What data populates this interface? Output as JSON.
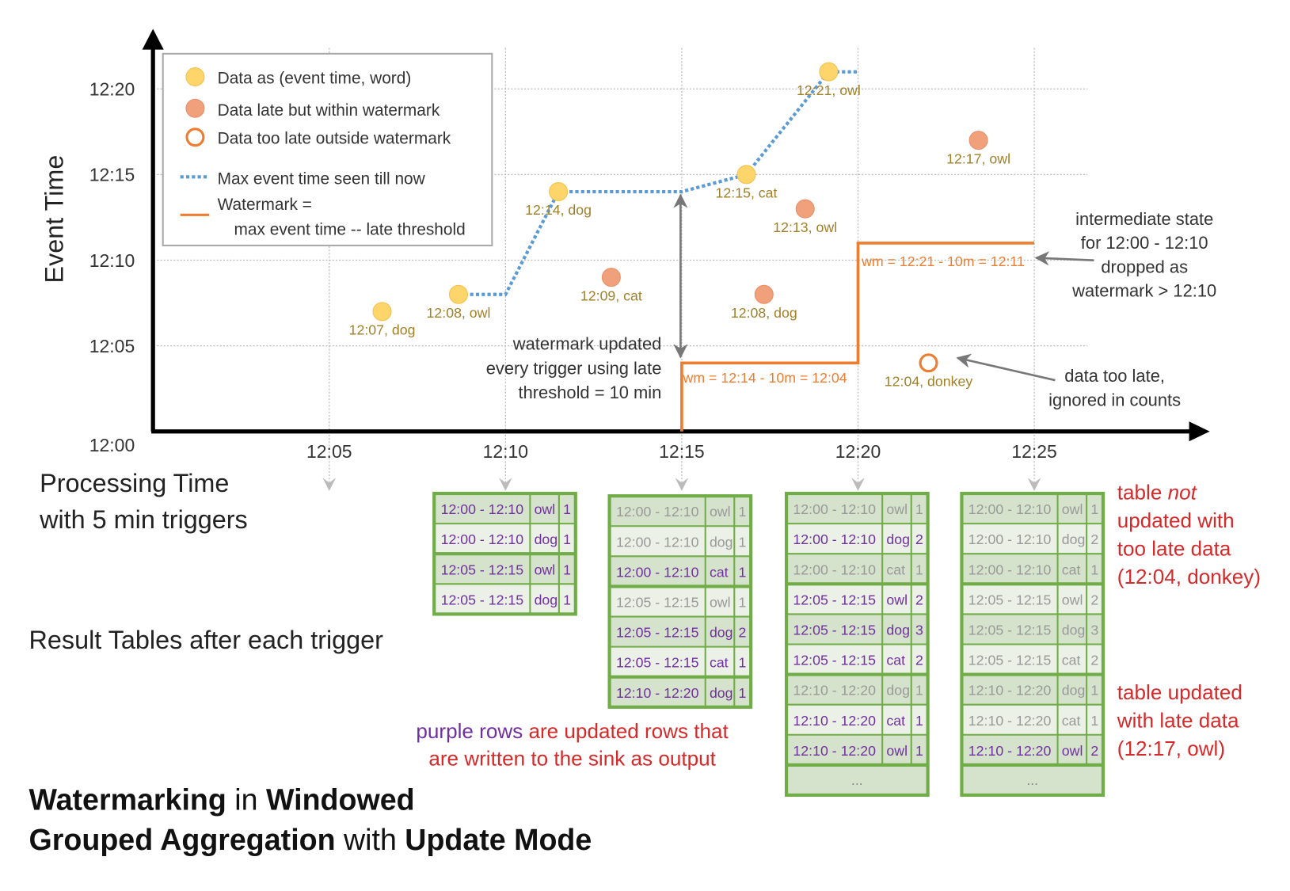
{
  "chart": {
    "y_axis_label": "Event Time",
    "x_axis_label_lines": [
      "Processing Time",
      "with 5 min triggers"
    ],
    "y_ticks": [
      "12:00",
      "12:05",
      "12:10",
      "12:15",
      "12:20"
    ],
    "x_ticks": [
      "12:05",
      "12:10",
      "12:15",
      "12:20",
      "12:25"
    ],
    "legend": {
      "on_time": "Data as (event time, word)",
      "late": "Data late but within watermark",
      "too_late": "Data too late outside watermark",
      "max_event": "Max event time seen till now",
      "watermark_line1": "Watermark =",
      "watermark_line2": "max event time -- late threshold"
    },
    "points": [
      {
        "processing": "12:06:30",
        "event": "12:07",
        "word": "dog",
        "kind": "on_time",
        "label": "12:07, dog"
      },
      {
        "processing": "12:08:40",
        "event": "12:08",
        "word": "owl",
        "kind": "on_time",
        "label": "12:08, owl"
      },
      {
        "processing": "12:11:30",
        "event": "12:14",
        "word": "dog",
        "kind": "on_time",
        "label": "12:14, dog"
      },
      {
        "processing": "12:13:00",
        "event": "12:09",
        "word": "cat",
        "kind": "late",
        "label": "12:09, cat"
      },
      {
        "processing": "12:16:50",
        "event": "12:15",
        "word": "cat",
        "kind": "on_time",
        "label": "12:15, cat"
      },
      {
        "processing": "12:17:20",
        "event": "12:08",
        "word": "dog",
        "kind": "late",
        "label": "12:08, dog"
      },
      {
        "processing": "12:18:30",
        "event": "12:13",
        "word": "owl",
        "kind": "late",
        "label": "12:13, owl"
      },
      {
        "processing": "12:19:10",
        "event": "12:21",
        "word": "owl",
        "kind": "on_time",
        "label": "12:21, owl"
      },
      {
        "processing": "12:22:00",
        "event": "12:04",
        "word": "donkey",
        "kind": "too_late",
        "label": "12:04, donkey"
      },
      {
        "processing": "12:23:25",
        "event": "12:17",
        "word": "owl",
        "kind": "late",
        "label": "12:17, owl"
      }
    ],
    "max_event_line": [
      [
        "12:08:40",
        "12:08"
      ],
      [
        "12:10:00",
        "12:08"
      ],
      [
        "12:11:30",
        "12:14"
      ],
      [
        "12:15:00",
        "12:14"
      ],
      [
        "12:16:50",
        "12:15"
      ],
      [
        "12:19:10",
        "12:21"
      ],
      [
        "12:20:00",
        "12:21"
      ]
    ],
    "watermark_line": [
      [
        "12:15:00",
        "12:00"
      ],
      [
        "12:15:00",
        "12:04"
      ],
      [
        "12:20:00",
        "12:04"
      ],
      [
        "12:20:00",
        "12:11"
      ],
      [
        "12:25:00",
        "12:11"
      ]
    ],
    "colors": {
      "on_time": "#fdd56b",
      "late": "#f0a07a",
      "too_late": "#ed7d31",
      "max_event": "#5b9bd5",
      "watermark": "#ed7d31",
      "updated_row": "#7030a0",
      "stale_row": "#999999",
      "table_border": "#70ad47",
      "note": "#d42a2a"
    }
  },
  "annotations": {
    "watermark_updated": [
      "watermark updated",
      "every trigger using late",
      "threshold = 10 min"
    ],
    "wm1": "wm = 12:14 - 10m = 12:04",
    "wm2": "wm = 12:21 - 10m = 12:11",
    "state_dropped": [
      "intermediate state",
      "for 12:00 - 12:10",
      "dropped as",
      "watermark > 12:10"
    ],
    "too_late": [
      "data too late,",
      "ignored in counts"
    ]
  },
  "result_tables_label": "Result Tables after each trigger",
  "tables": [
    {
      "trigger": "12:10",
      "more": "",
      "rows": [
        {
          "window": "12:00 - 12:10",
          "word": "owl",
          "count": "1",
          "updated": true
        },
        {
          "window": "12:00 - 12:10",
          "word": "dog",
          "count": "1",
          "updated": true
        },
        {
          "window": "12:05 - 12:15",
          "word": "owl",
          "count": "1",
          "updated": true
        },
        {
          "window": "12:05 - 12:15",
          "word": "dog",
          "count": "1",
          "updated": true
        }
      ]
    },
    {
      "trigger": "12:15",
      "more": "",
      "rows": [
        {
          "window": "12:00 - 12:10",
          "word": "owl",
          "count": "1",
          "updated": false
        },
        {
          "window": "12:00 - 12:10",
          "word": "dog",
          "count": "1",
          "updated": false
        },
        {
          "window": "12:00 - 12:10",
          "word": "cat",
          "count": "1",
          "updated": true
        },
        {
          "window": "12:05 - 12:15",
          "word": "owl",
          "count": "1",
          "updated": false
        },
        {
          "window": "12:05 - 12:15",
          "word": "dog",
          "count": "2",
          "updated": true
        },
        {
          "window": "12:05 - 12:15",
          "word": "cat",
          "count": "1",
          "updated": true
        },
        {
          "window": "12:10 - 12:20",
          "word": "dog",
          "count": "1",
          "updated": true
        }
      ]
    },
    {
      "trigger": "12:20",
      "more": "...",
      "rows": [
        {
          "window": "12:00 - 12:10",
          "word": "owl",
          "count": "1",
          "updated": false
        },
        {
          "window": "12:00 - 12:10",
          "word": "dog",
          "count": "2",
          "updated": true
        },
        {
          "window": "12:00 - 12:10",
          "word": "cat",
          "count": "1",
          "updated": false
        },
        {
          "window": "12:05 - 12:15",
          "word": "owl",
          "count": "2",
          "updated": true
        },
        {
          "window": "12:05 - 12:15",
          "word": "dog",
          "count": "3",
          "updated": true
        },
        {
          "window": "12:05 - 12:15",
          "word": "cat",
          "count": "2",
          "updated": true
        },
        {
          "window": "12:10 - 12:20",
          "word": "dog",
          "count": "1",
          "updated": false
        },
        {
          "window": "12:10 - 12:20",
          "word": "cat",
          "count": "1",
          "updated": true
        },
        {
          "window": "12:10 - 12:20",
          "word": "owl",
          "count": "1",
          "updated": true
        }
      ]
    },
    {
      "trigger": "12:25",
      "more": "...",
      "rows": [
        {
          "window": "12:00 - 12:10",
          "word": "owl",
          "count": "1",
          "updated": false
        },
        {
          "window": "12:00 - 12:10",
          "word": "dog",
          "count": "2",
          "updated": false
        },
        {
          "window": "12:00 - 12:10",
          "word": "cat",
          "count": "1",
          "updated": false
        },
        {
          "window": "12:05 - 12:15",
          "word": "owl",
          "count": "2",
          "updated": false
        },
        {
          "window": "12:05 - 12:15",
          "word": "dog",
          "count": "3",
          "updated": false
        },
        {
          "window": "12:05 - 12:15",
          "word": "cat",
          "count": "2",
          "updated": false
        },
        {
          "window": "12:10 - 12:20",
          "word": "dog",
          "count": "1",
          "updated": false
        },
        {
          "window": "12:10 - 12:20",
          "word": "cat",
          "count": "1",
          "updated": false
        },
        {
          "window": "12:10 - 12:20",
          "word": "owl",
          "count": "2",
          "updated": true
        }
      ]
    }
  ],
  "purple_note": {
    "purple": "purple rows",
    "rest1": " are updated rows that",
    "line2": "are written to the sink as output"
  },
  "note_not_updated": {
    "l1a": "table ",
    "l1b": "not",
    "l2": "updated with",
    "l3": "too late data",
    "l4": "(12:04, donkey)"
  },
  "note_updated": [
    "table updated",
    "with late data",
    "(12:17, owl)"
  ],
  "title": {
    "w1": "Watermarking",
    "w2": " in ",
    "w3": "Windowed",
    "w4": "Grouped Aggregation",
    "w5": " with ",
    "w6": "Update Mode"
  }
}
